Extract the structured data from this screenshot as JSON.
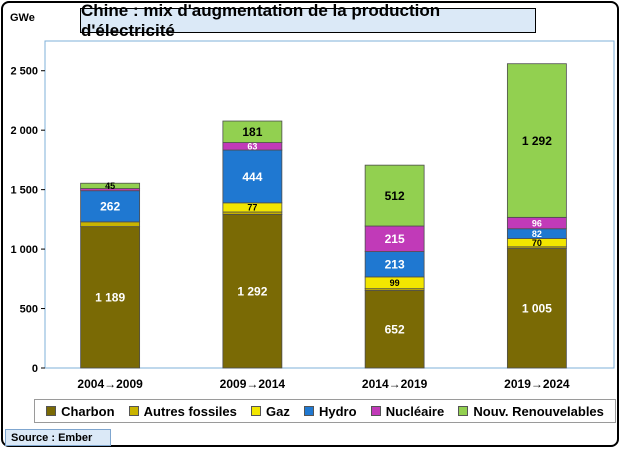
{
  "title": "Chine : mix d'augmentation de la production d'électricité",
  "source": "Source : Ember",
  "chart_data": {
    "type": "bar",
    "stacked": true,
    "ylabel": "GWe",
    "ylim": [
      0,
      2750
    ],
    "yticks": [
      0,
      500,
      1000,
      1500,
      2000,
      2500
    ],
    "ytick_labels": [
      "0",
      "500",
      "1 000",
      "1 500",
      "2 000",
      "2 500"
    ],
    "grid": false,
    "legend_position": "bottom",
    "categories": [
      "2004→2009",
      "2009→2014",
      "2014→2019",
      "2019→2024"
    ],
    "series": [
      {
        "name": "Charbon",
        "color": "#7a6a05",
        "values": [
          1189,
          1292,
          652,
          1005
        ],
        "labels": [
          "1 189",
          "1 292",
          "652",
          "1 005"
        ],
        "label_color": "#ffffff"
      },
      {
        "name": "Autres fossiles",
        "color": "#c9b400",
        "values": [
          40,
          20,
          15,
          14
        ],
        "labels": [
          "",
          "",
          "",
          ""
        ],
        "label_color": "#000000"
      },
      {
        "name": "Gaz",
        "color": "#f2e600",
        "values": [
          0,
          77,
          99,
          70
        ],
        "labels": [
          "",
          "77",
          "99",
          "70"
        ],
        "label_color": "#000000"
      },
      {
        "name": "Hydro",
        "color": "#1f78d1",
        "values": [
          262,
          444,
          213,
          82
        ],
        "labels": [
          "262",
          "444",
          "213",
          "82"
        ],
        "label_color": "#ffffff"
      },
      {
        "name": "Nucléaire",
        "color": "#c13ab8",
        "values": [
          18,
          63,
          215,
          96
        ],
        "labels": [
          "",
          "63",
          "215",
          "96"
        ],
        "label_color": "#ffffff"
      },
      {
        "name": "Nouv. Renouvelables",
        "color": "#92d050",
        "values": [
          45,
          181,
          512,
          1292
        ],
        "labels": [
          "45",
          "181",
          "512",
          "1 292"
        ],
        "label_color": "#000000"
      }
    ]
  }
}
